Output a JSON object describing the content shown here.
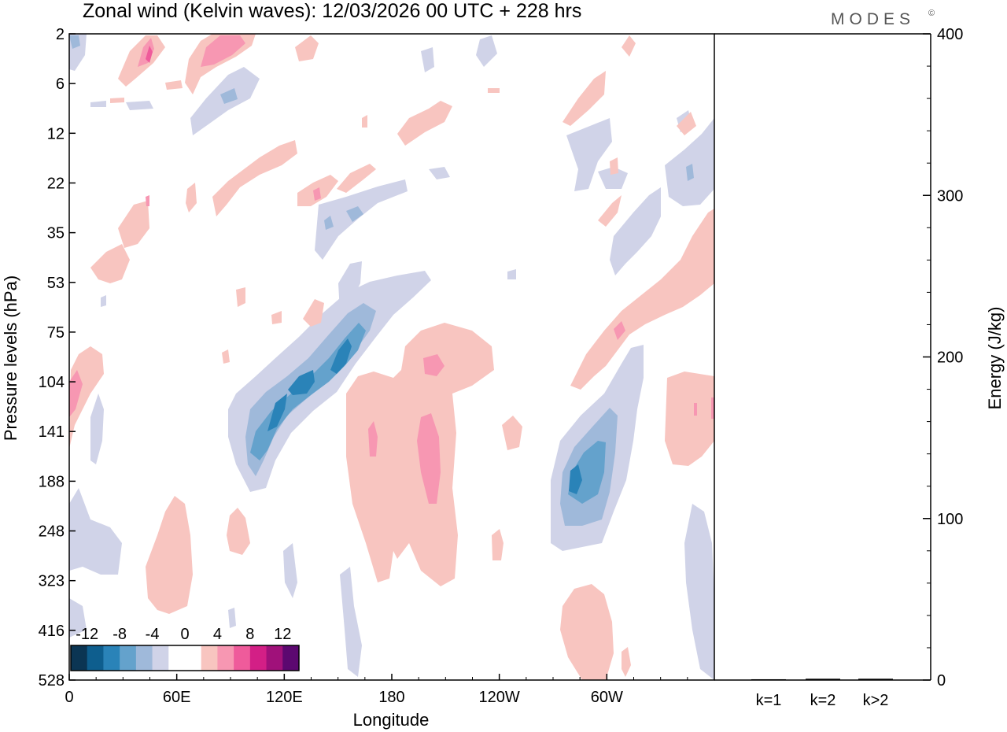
{
  "chart_data": {
    "type": "heatmap",
    "title": "Zonal wind (Kelvin waves):  12/03/2026  00 UTC  + 228 hrs",
    "brand": "MODES",
    "brand_mark": "©",
    "xlabel": "Longitude",
    "ylabel": "Pressure levels (hPa)",
    "x_ticks": [
      "0",
      "60E",
      "120E",
      "180",
      "120W",
      "60W"
    ],
    "y_ticks": [
      "2",
      "6",
      "12",
      "22",
      "35",
      "53",
      "75",
      "104",
      "141",
      "188",
      "248",
      "323",
      "416",
      "528"
    ],
    "colorbar": {
      "labels": [
        "-12",
        "-8",
        "-4",
        "0",
        "4",
        "8",
        "12"
      ],
      "colors": [
        "#0b3553",
        "#0e5e8e",
        "#2a83b8",
        "#64a2cc",
        "#9fb9da",
        "#d0d3e8",
        "#ffffff",
        "#ffffff",
        "#f8c5c0",
        "#f797b2",
        "#ef5b9b",
        "#d31f86",
        "#a0117a",
        "#5c0870"
      ]
    },
    "features": [
      {
        "sign": "neg",
        "level": 3,
        "lon": 124,
        "p": 120,
        "note": "central negative wave core"
      },
      {
        "sign": "neg",
        "level": 4,
        "lon": 120,
        "p": 108
      },
      {
        "sign": "neg",
        "level": 4,
        "lon": 142,
        "p": 86
      },
      {
        "sign": "neg",
        "level": 4,
        "lon": 290,
        "p": 180,
        "note": "Western Hemisphere negative core"
      },
      {
        "sign": "pos",
        "level": 1,
        "lon": 185,
        "p": 170,
        "note": "broad positive region near dateline"
      },
      {
        "sign": "pos",
        "level": 2,
        "lon": 198,
        "p": 165
      },
      {
        "sign": "pos",
        "level": 2,
        "lon": 206,
        "p": 98
      },
      {
        "sign": "pos",
        "level": 1,
        "lon": 330,
        "p": 60,
        "note": "upper-troposphere positive tilt"
      }
    ],
    "energy_panel": {
      "ylabel": "Energy (J/kg)",
      "ylim": [
        0,
        400
      ],
      "y_ticks": [
        "0",
        "100",
        "200",
        "300",
        "400"
      ],
      "categories": [
        "k=1",
        "k=2",
        "k>2"
      ],
      "values": [
        0.5,
        0.8,
        0.8
      ]
    }
  }
}
